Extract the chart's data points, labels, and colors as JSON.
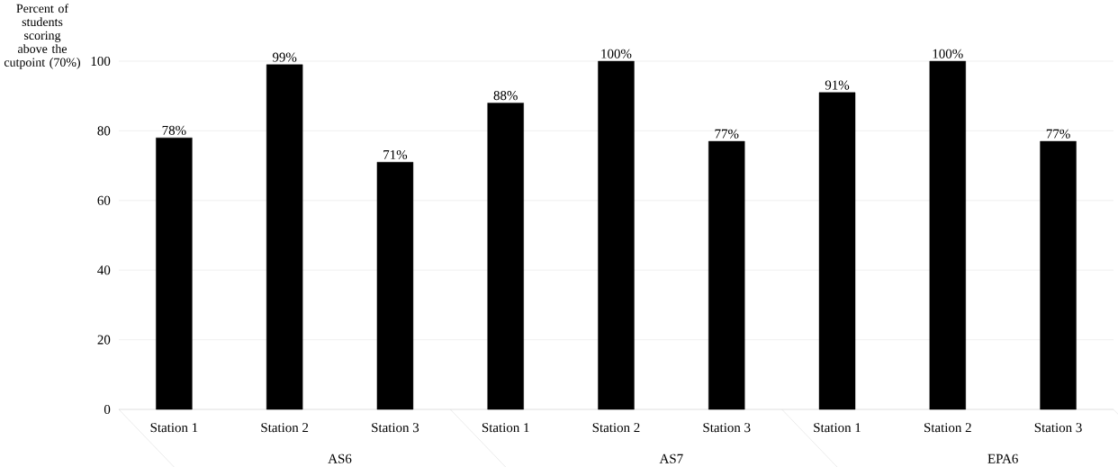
{
  "chart_data": {
    "type": "bar",
    "ylabel": "Percent of students scoring above the cutpoint (70%)",
    "categories": [
      "Station 1",
      "Station 2",
      "Station 3",
      "Station 1",
      "Station 2",
      "Station 3",
      "Station 1",
      "Station 2",
      "Station 3"
    ],
    "values": [
      78,
      99,
      71,
      88,
      100,
      77,
      91,
      100,
      77
    ],
    "value_labels": [
      "78%",
      "99%",
      "71%",
      "88%",
      "100%",
      "77%",
      "91%",
      "100%",
      "77%"
    ],
    "color": "#000000",
    "ylim": [
      0,
      100
    ],
    "yticks": [
      0,
      20,
      40,
      60,
      80,
      100
    ],
    "grid": "y",
    "annotations": [
      "AS6",
      "AS7",
      "EPA6"
    ]
  }
}
